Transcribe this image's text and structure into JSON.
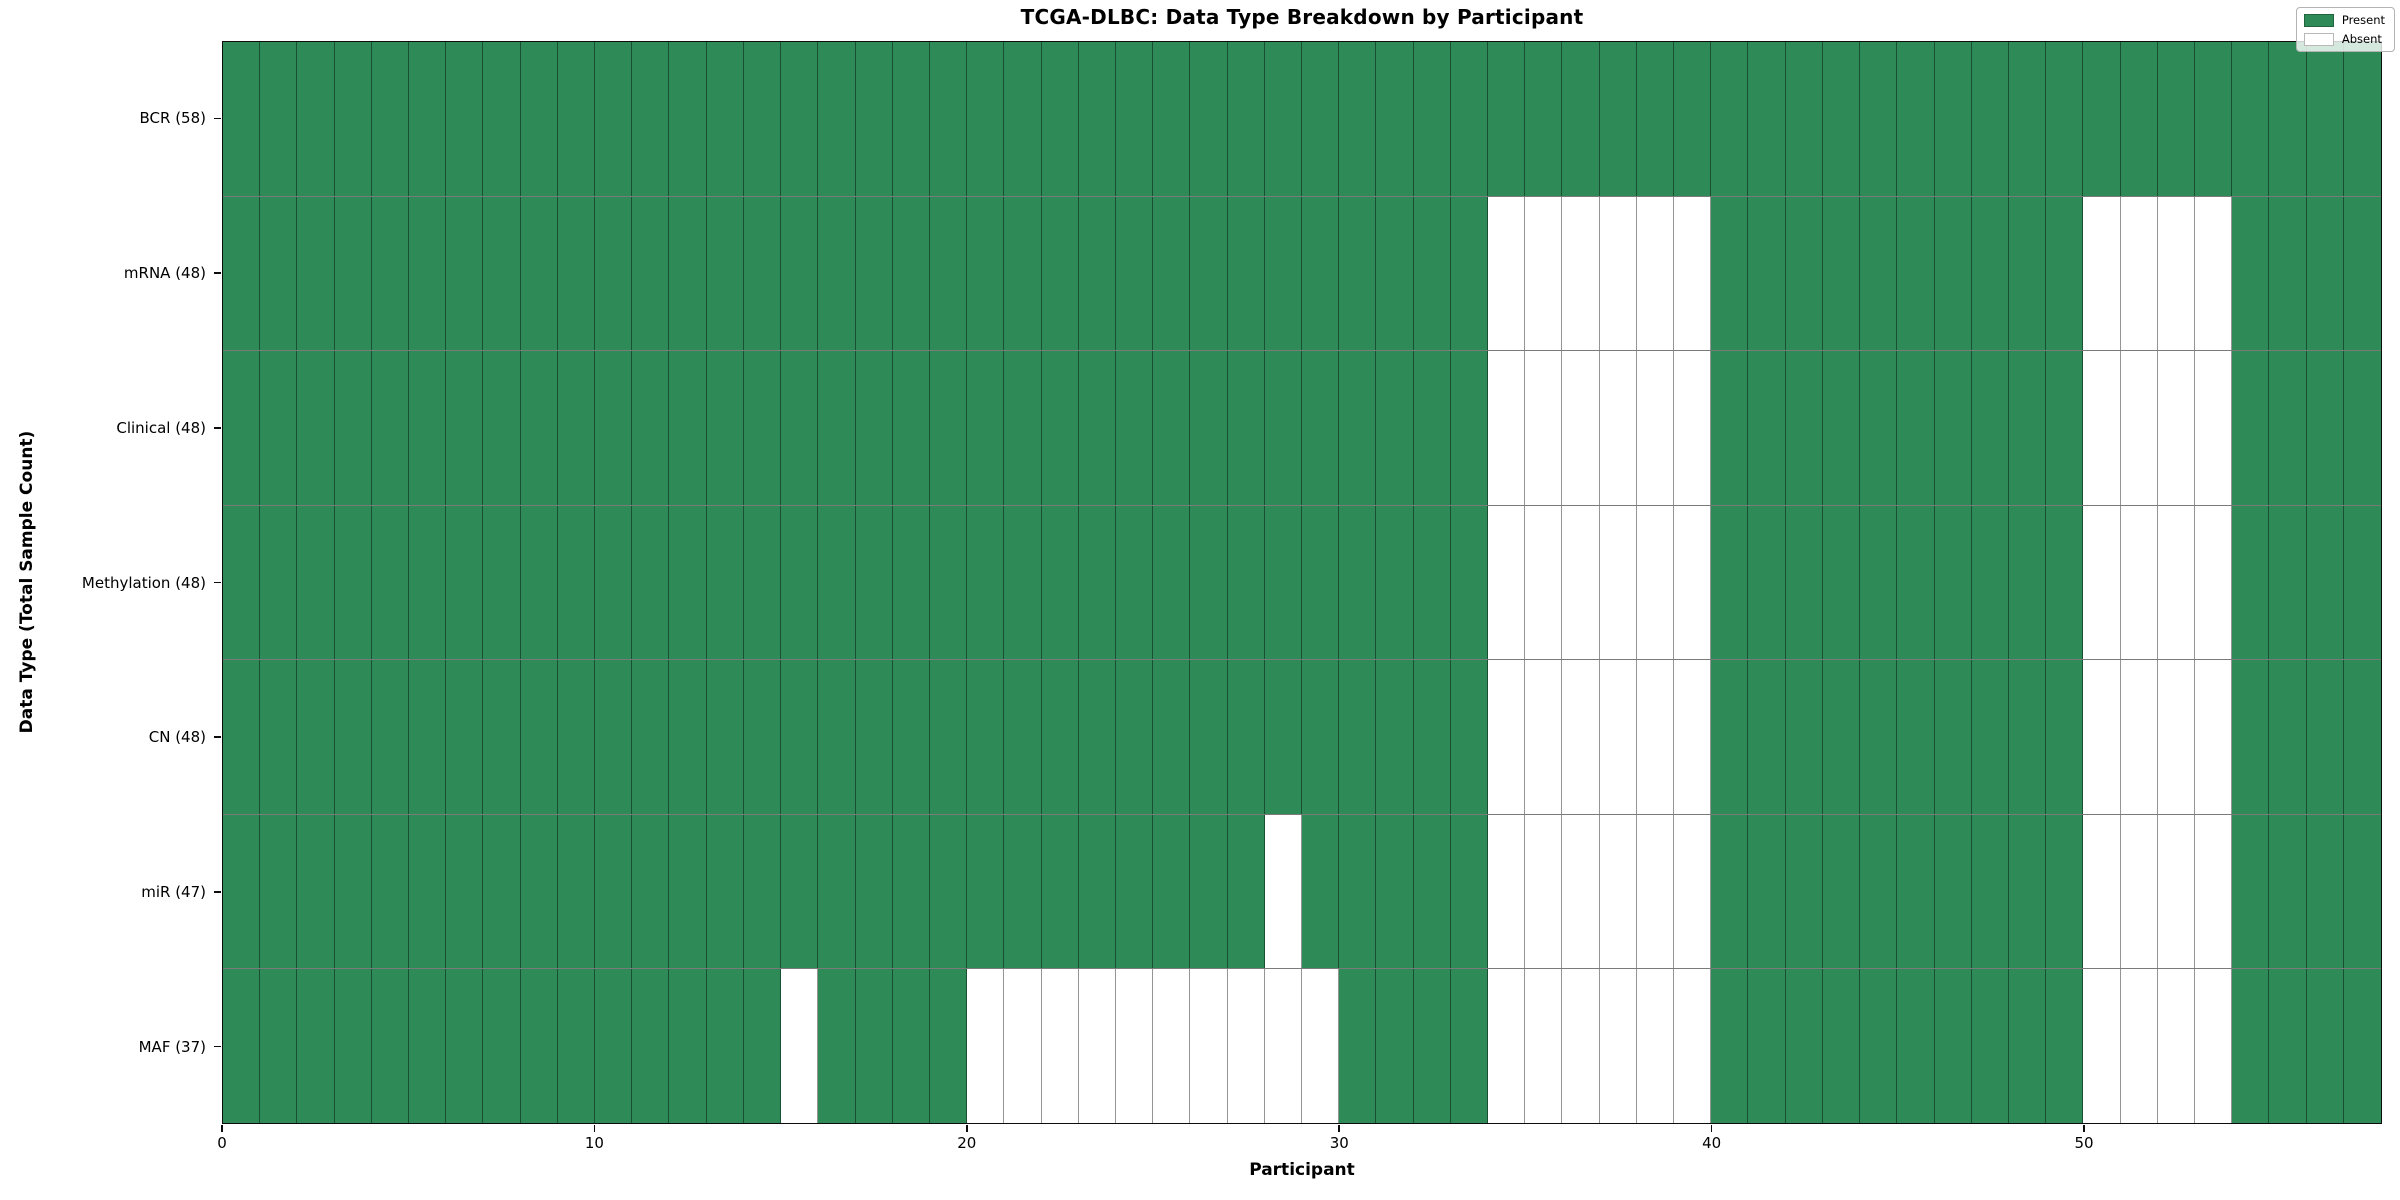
{
  "chart_data": {
    "type": "heatmap",
    "title": "TCGA-DLBC: Data Type Breakdown by Participant",
    "xlabel": "Participant",
    "ylabel": "Data Type (Total Sample Count)",
    "x_ticks": [
      0,
      10,
      20,
      30,
      40,
      50
    ],
    "n_participants": 58,
    "x_range": [
      0,
      58
    ],
    "grid": true,
    "legend_position": "upper right",
    "legend": [
      {
        "label": "Present",
        "color": "#2e8b57"
      },
      {
        "label": "Absent",
        "color": "#ffffff"
      }
    ],
    "colors": {
      "present": "#2e8b57",
      "absent": "#ffffff",
      "gridline": "rgba(0,0,0,0.45)",
      "spine": "#0d0d0d"
    },
    "rows": [
      {
        "label": "BCR (58)",
        "present_count": 58,
        "absent_participants": []
      },
      {
        "label": "mRNA (48)",
        "present_count": 48,
        "absent_participants": [
          34,
          35,
          36,
          37,
          38,
          39,
          50,
          51,
          52,
          53
        ]
      },
      {
        "label": "Clinical (48)",
        "present_count": 48,
        "absent_participants": [
          34,
          35,
          36,
          37,
          38,
          39,
          50,
          51,
          52,
          53
        ]
      },
      {
        "label": "Methylation (48)",
        "present_count": 48,
        "absent_participants": [
          34,
          35,
          36,
          37,
          38,
          39,
          50,
          51,
          52,
          53
        ]
      },
      {
        "label": "CN (48)",
        "present_count": 48,
        "absent_participants": [
          34,
          35,
          36,
          37,
          38,
          39,
          50,
          51,
          52,
          53
        ]
      },
      {
        "label": "miR (47)",
        "present_count": 47,
        "absent_participants": [
          28,
          34,
          35,
          36,
          37,
          38,
          39,
          50,
          51,
          52,
          53
        ]
      },
      {
        "label": "MAF (37)",
        "present_count": 37,
        "absent_participants": [
          15,
          20,
          21,
          22,
          23,
          24,
          25,
          26,
          27,
          28,
          29,
          34,
          35,
          36,
          37,
          38,
          39,
          50,
          51,
          52,
          53
        ]
      }
    ]
  }
}
